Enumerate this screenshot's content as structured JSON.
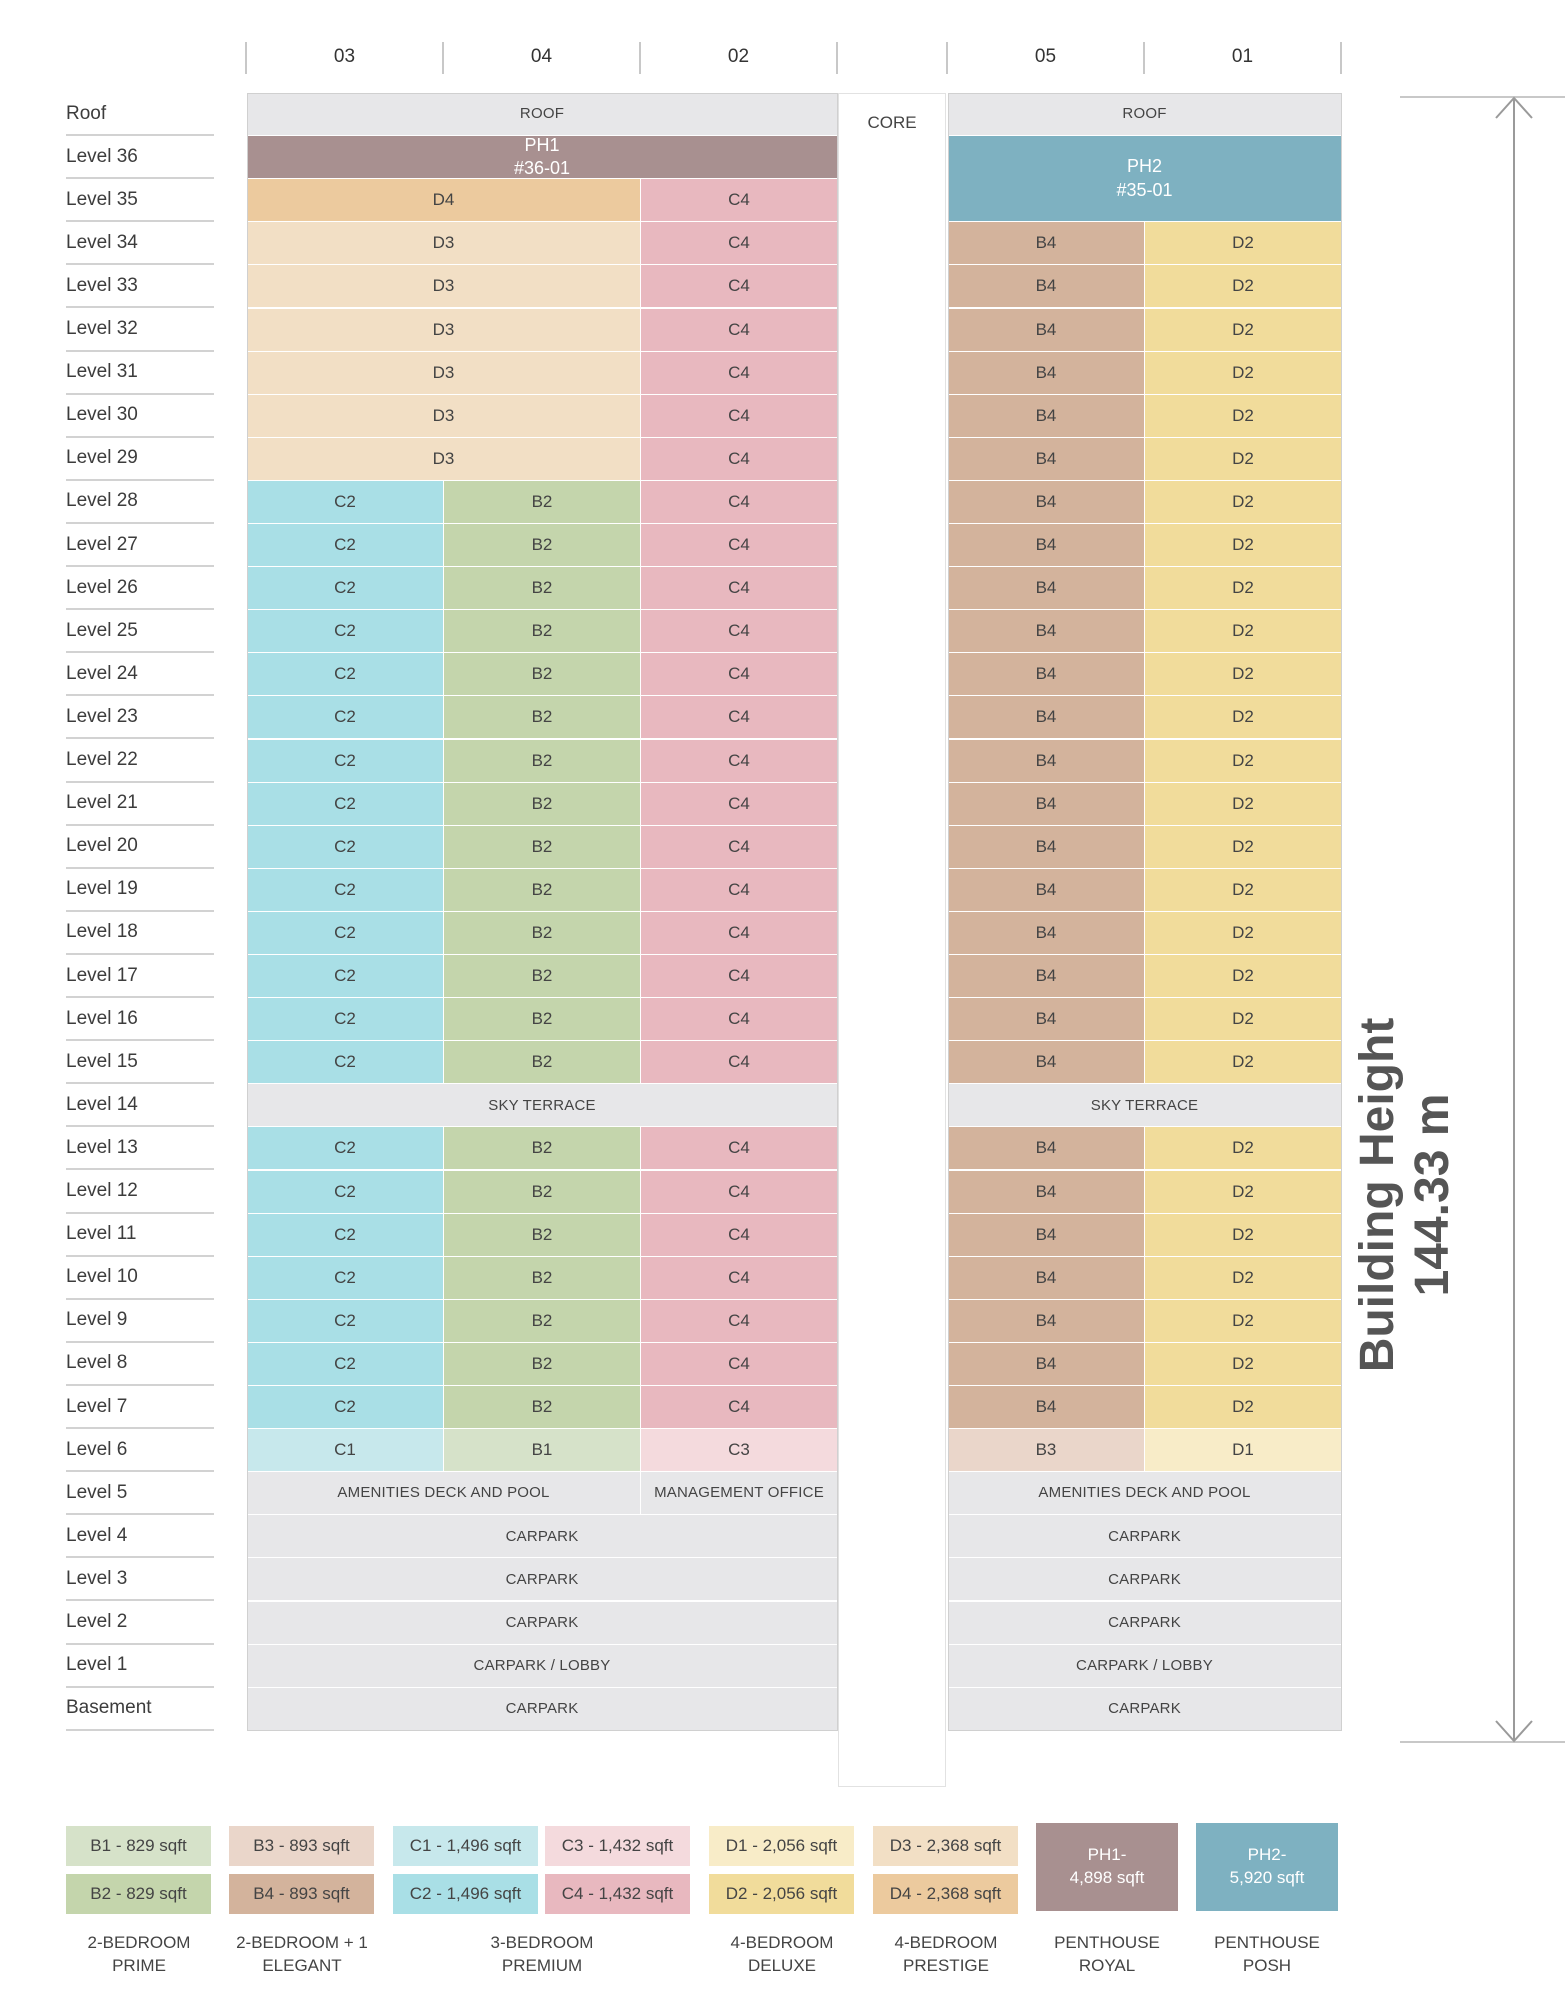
{
  "columns": {
    "left": [
      "03",
      "04",
      "02"
    ],
    "core": "",
    "right": [
      "05",
      "01"
    ]
  },
  "levels": [
    "Roof",
    "Level 36",
    "Level 35",
    "Level 34",
    "Level 33",
    "Level 32",
    "Level 31",
    "Level 30",
    "Level 29",
    "Level 28",
    "Level 27",
    "Level 26",
    "Level 25",
    "Level 24",
    "Level 23",
    "Level 22",
    "Level 21",
    "Level 20",
    "Level 19",
    "Level 18",
    "Level 17",
    "Level 16",
    "Level 15",
    "Level 14",
    "Level 13",
    "Level 12",
    "Level 11",
    "Level 10",
    "Level 9",
    "Level 8",
    "Level 7",
    "Level 6",
    "Level 5",
    "Level 4",
    "Level 3",
    "Level 2",
    "Level 1",
    "Basement"
  ],
  "colors": {
    "B1": "#d6e2c9",
    "B2": "#c4d5ac",
    "B3": "#ead6ca",
    "B4": "#d3b39c",
    "C1": "#c7e8ec",
    "C2": "#a9dfe6",
    "C3": "#f4dadd",
    "C4": "#e8b8bf",
    "D1": "#f8ecc8",
    "D2": "#f1dc9b",
    "D3": "#f2dfc5",
    "D4": "#ecca9e",
    "PH1": "#a89090",
    "PH2": "#7eb1c1",
    "common": "#e7e7e9",
    "core": "#ffffff"
  },
  "labels": {
    "roof": "ROOF",
    "core": "CORE",
    "ph1": [
      "PH1",
      "#36-01"
    ],
    "ph2": [
      "PH2",
      "#35-01"
    ],
    "sky_terrace": "SKY TERRACE",
    "amenities": "AMENITIES DECK AND POOL",
    "management": "MANAGEMENT OFFICE",
    "carpark": "CARPARK",
    "carpark_lobby": "CARPARK / LOBBY",
    "units": {
      "B1": "B1",
      "B2": "B2",
      "B3": "B3",
      "B4": "B4",
      "C1": "C1",
      "C2": "C2",
      "C3": "C3",
      "C4": "C4",
      "D1": "D1",
      "D2": "D2",
      "D3": "D3",
      "D4": "D4"
    }
  },
  "building_height": {
    "title": "Building Height",
    "value": "144.33 m"
  },
  "legend": {
    "boxes": {
      "B1": "B1 - 829 sqft",
      "B2": "B2 - 829 sqft",
      "B3": "B3 - 893 sqft",
      "B4": "B4 - 893 sqft",
      "C1": "C1 - 1,496 sqft",
      "C2": "C2 - 1,496 sqft",
      "C3": "C3 - 1,432 sqft",
      "C4": "C4 - 1,432 sqft",
      "D1": "D1 - 2,056 sqft",
      "D2": "D2 - 2,056 sqft",
      "D3": "D3 - 2,368 sqft",
      "D4": "D4 - 2,368 sqft",
      "PH1": [
        "PH1-",
        "4,898 sqft"
      ],
      "PH2": [
        "PH2-",
        "5,920 sqft"
      ]
    },
    "categories": {
      "two_bed_prime": [
        "2-BEDROOM",
        "PRIME"
      ],
      "two_bed_elegant": [
        "2-BEDROOM + 1",
        "ELEGANT"
      ],
      "three_bed_premium": [
        "3-BEDROOM",
        "PREMIUM"
      ],
      "four_bed_deluxe": [
        "4-BEDROOM",
        "DELUXE"
      ],
      "four_bed_prestige": [
        "4-BEDROOM",
        "PRESTIGE"
      ],
      "penthouse_royal": [
        "PENTHOUSE",
        "ROYAL"
      ],
      "penthouse_posh": [
        "PENTHOUSE",
        "POSH"
      ]
    }
  }
}
